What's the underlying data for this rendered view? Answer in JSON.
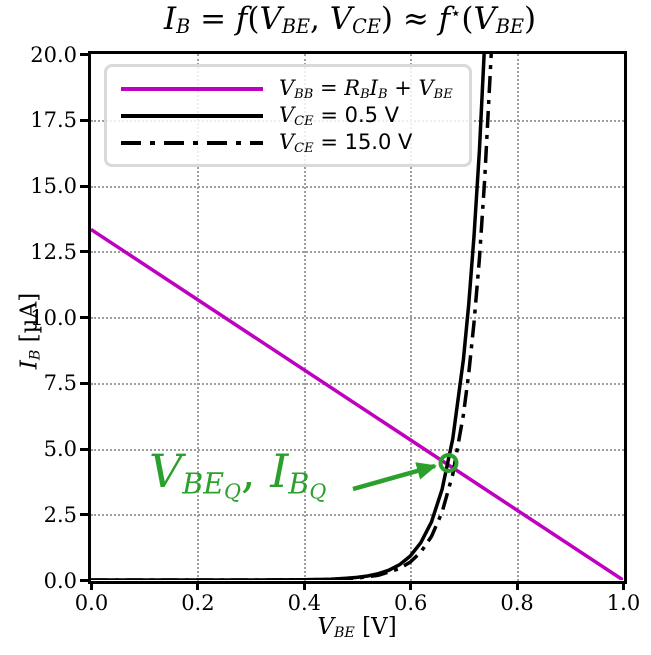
{
  "chart_data": {
    "type": "line",
    "title": "I_B = f(V_BE, V_CE) ≈ f⋆(V_BE)",
    "title_parts": [
      {
        "t": "I",
        "s": "i"
      },
      {
        "t": "B",
        "s": "sub"
      },
      {
        "t": " = ",
        "s": "n"
      },
      {
        "t": "f",
        "s": "i"
      },
      {
        "t": "(",
        "s": "n"
      },
      {
        "t": "V",
        "s": "i"
      },
      {
        "t": "BE",
        "s": "sub"
      },
      {
        "t": ", ",
        "s": "n"
      },
      {
        "t": "V",
        "s": "i"
      },
      {
        "t": "CE",
        "s": "sub"
      },
      {
        "t": ") ≈ ",
        "s": "n"
      },
      {
        "t": "f",
        "s": "i"
      },
      {
        "t": "⋆",
        "s": "sup"
      },
      {
        "t": "(",
        "s": "n"
      },
      {
        "t": "V",
        "s": "i"
      },
      {
        "t": "BE",
        "s": "sub"
      },
      {
        "t": ")",
        "s": "n"
      }
    ],
    "xlabel": "V_BE [V]",
    "xlabel_parts": [
      {
        "t": "V",
        "s": "i"
      },
      {
        "t": "BE",
        "s": "sub"
      },
      {
        "t": " [V]",
        "s": "n"
      }
    ],
    "ylabel": "I_B [µA]",
    "ylabel_parts": [
      {
        "t": "I",
        "s": "i"
      },
      {
        "t": "B",
        "s": "sub"
      },
      {
        "t": " [µA]",
        "s": "n"
      }
    ],
    "xlim": [
      0.0,
      1.0
    ],
    "ylim": [
      0.0,
      20.0
    ],
    "xticks": [
      {
        "v": 0.0,
        "label": "0.0"
      },
      {
        "v": 0.2,
        "label": "0.2"
      },
      {
        "v": 0.4,
        "label": "0.4"
      },
      {
        "v": 0.6,
        "label": "0.6"
      },
      {
        "v": 0.8,
        "label": "0.8"
      },
      {
        "v": 1.0,
        "label": "1.0"
      }
    ],
    "yticks": [
      {
        "v": 0.0,
        "label": "0.0"
      },
      {
        "v": 2.5,
        "label": "2.5"
      },
      {
        "v": 5.0,
        "label": "5.0"
      },
      {
        "v": 7.5,
        "label": "7.5"
      },
      {
        "v": 10.0,
        "label": "10.0"
      },
      {
        "v": 12.5,
        "label": "12.5"
      },
      {
        "v": 15.0,
        "label": "15.0"
      },
      {
        "v": 17.5,
        "label": "17.5"
      },
      {
        "v": 20.0,
        "label": "20.0"
      }
    ],
    "grid": true,
    "grid_color": "#9e9e9e",
    "series": [
      {
        "id": "load-line",
        "name": "V_BB = R_B I_B + V_BE",
        "color": "#bf00bf",
        "dash": "solid",
        "points": [
          [
            0.0,
            13.33
          ],
          [
            1.0,
            0.0
          ]
        ]
      },
      {
        "id": "vce-0p5",
        "name": "V_CE = 0.5 V",
        "color": "#000000",
        "dash": "solid",
        "points": [
          [
            0.0,
            0.0
          ],
          [
            0.3,
            0.001
          ],
          [
            0.35,
            0.003
          ],
          [
            0.4,
            0.011
          ],
          [
            0.45,
            0.032
          ],
          [
            0.48,
            0.063
          ],
          [
            0.5,
            0.099
          ],
          [
            0.52,
            0.153
          ],
          [
            0.54,
            0.239
          ],
          [
            0.56,
            0.373
          ],
          [
            0.58,
            0.583
          ],
          [
            0.6,
            0.908
          ],
          [
            0.62,
            1.417
          ],
          [
            0.64,
            2.21
          ],
          [
            0.66,
            3.447
          ],
          [
            0.68,
            5.376
          ],
          [
            0.7,
            8.382
          ],
          [
            0.71,
            10.466
          ],
          [
            0.72,
            13.07
          ],
          [
            0.73,
            16.322
          ],
          [
            0.739,
            19.98
          ],
          [
            0.742,
            21.4
          ]
        ]
      },
      {
        "id": "vce-15",
        "name": "V_CE = 15.0 V",
        "color": "#000000",
        "dash": "dashdot",
        "points": [
          [
            0.0,
            0.0
          ],
          [
            0.3,
            0.001
          ],
          [
            0.35,
            0.002
          ],
          [
            0.4,
            0.008
          ],
          [
            0.45,
            0.024
          ],
          [
            0.5,
            0.074
          ],
          [
            0.54,
            0.179
          ],
          [
            0.58,
            0.437
          ],
          [
            0.6,
            0.68
          ],
          [
            0.62,
            1.062
          ],
          [
            0.64,
            1.656
          ],
          [
            0.66,
            2.583
          ],
          [
            0.68,
            4.028
          ],
          [
            0.7,
            6.28
          ],
          [
            0.71,
            7.838
          ],
          [
            0.72,
            9.783
          ],
          [
            0.73,
            12.211
          ],
          [
            0.74,
            15.242
          ],
          [
            0.752,
            19.91
          ],
          [
            0.755,
            21.2
          ]
        ]
      }
    ],
    "q_point": {
      "x": 0.672,
      "y": 4.45,
      "radius_px": 8,
      "color": "#2ca02c",
      "label": "V_BE_Q, I_B_Q"
    },
    "annotation": {
      "text": "V_BE_Q, I_B_Q",
      "text_parts": [
        {
          "t": "V",
          "s": "i"
        },
        {
          "t": "BE",
          "s": "sub"
        },
        {
          "t": "Q",
          "s": "sub2"
        },
        {
          "t": ", ",
          "s": "n"
        },
        {
          "t": "I",
          "s": "i"
        },
        {
          "t": "B",
          "s": "sub"
        },
        {
          "t": "Q",
          "s": "sub2"
        }
      ],
      "color": "#2ca02c",
      "arrow_from": [
        0.4925,
        3.46
      ],
      "arrow_to": [
        0.6466,
        4.335
      ]
    },
    "legend": {
      "position": "upper left",
      "items": [
        {
          "label": "V_BB = R_B I_B + V_BE",
          "color": "#bf00bf",
          "dash": "solid",
          "label_parts": [
            {
              "t": "V",
              "s": "i"
            },
            {
              "t": "BB",
              "s": "sub"
            },
            {
              "t": " = ",
              "s": "n"
            },
            {
              "t": "R",
              "s": "i"
            },
            {
              "t": "B",
              "s": "sub"
            },
            {
              "t": "I",
              "s": "i"
            },
            {
              "t": "B",
              "s": "sub"
            },
            {
              "t": " + ",
              "s": "n"
            },
            {
              "t": "V",
              "s": "i"
            },
            {
              "t": "BE",
              "s": "sub"
            }
          ]
        },
        {
          "label": "V_CE = 0.5 V",
          "color": "#000000",
          "dash": "solid",
          "label_parts": [
            {
              "t": "V",
              "s": "i"
            },
            {
              "t": "CE",
              "s": "sub"
            },
            {
              "t": " = 0.5 V",
              "s": "sn"
            }
          ]
        },
        {
          "label": "V_CE = 15.0 V",
          "color": "#000000",
          "dash": "dashdot",
          "label_parts": [
            {
              "t": "V",
              "s": "i"
            },
            {
              "t": "CE",
              "s": "sub"
            },
            {
              "t": " = 15.0 V",
              "s": "sn"
            }
          ]
        }
      ]
    }
  }
}
